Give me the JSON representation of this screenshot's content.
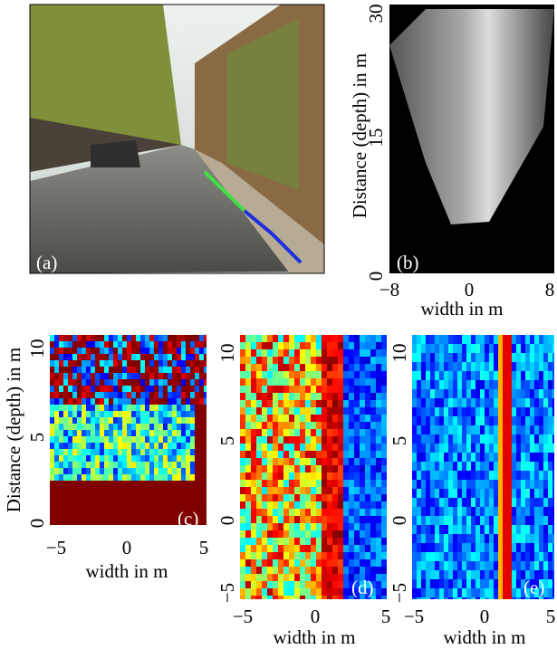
{
  "panels": [
    {
      "label": "(a)"
    },
    {
      "label": "(b)",
      "x_label": "width in m",
      "y_label": "Distance (depth) in m",
      "x_ticks": [
        "−8",
        "0",
        "8"
      ],
      "y_ticks": [
        "0",
        "15",
        "30"
      ]
    },
    {
      "label": "(c)",
      "x_label": "width in m",
      "y_label": "Distance (depth) in m",
      "x_ticks": [
        "−5",
        "0",
        "5"
      ],
      "y_ticks": [
        "0",
        "5",
        "10"
      ]
    },
    {
      "label": "(d)",
      "x_label": "width in m",
      "x_ticks": [
        "−5",
        "0",
        "5"
      ],
      "y_ticks": [
        "−5",
        "0",
        "5",
        "10"
      ]
    },
    {
      "label": "(e)",
      "x_label": "width in m",
      "x_ticks": [
        "−5",
        "0",
        "5"
      ],
      "y_ticks": [
        "−5",
        "0",
        "5",
        "10"
      ]
    }
  ]
}
